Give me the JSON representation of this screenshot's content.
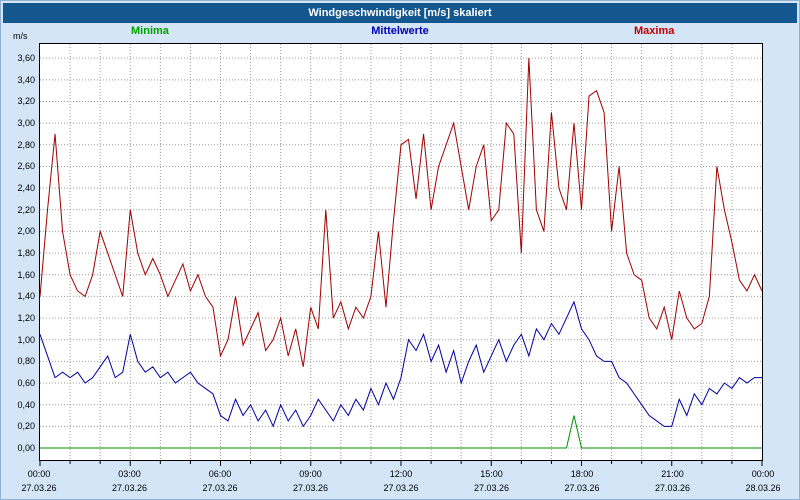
{
  "window": {
    "title": "Windgeschwindigkeit [m/s] skaliert"
  },
  "legend": [
    {
      "label": "Minima",
      "color": "#00a000"
    },
    {
      "label": "Mittelwerte",
      "color": "#0000b0"
    },
    {
      "label": "Maxima",
      "color": "#c00000"
    }
  ],
  "chart_data": {
    "type": "line",
    "title": "Windgeschwindigkeit [m/s] skaliert",
    "xlabel": "",
    "ylabel": "m/s",
    "ylim": [
      0,
      3.6
    ],
    "ytick_step": 0.2,
    "ytick_labels": [
      "0,00",
      "0,20",
      "0,40",
      "0,60",
      "0,80",
      "1,00",
      "1,20",
      "1,40",
      "1,60",
      "1,80",
      "2,00",
      "2,20",
      "2,40",
      "2,60",
      "2,80",
      "3,00",
      "3,20",
      "3,40",
      "3,60"
    ],
    "grid": "dotted",
    "legend_position": "top",
    "x_minutes_step": 15,
    "x_total_minutes": 1440,
    "x_hour_ticks": [
      "00:00",
      "03:00",
      "06:00",
      "09:00",
      "12:00",
      "15:00",
      "18:00",
      "21:00",
      "00:00"
    ],
    "x_date_ticks": [
      "27.03.26",
      "27.03.26",
      "27.03.26",
      "27.03.26",
      "27.03.26",
      "27.03.26",
      "27.03.26",
      "27.03.26",
      "28.03.26"
    ],
    "series": [
      {
        "name": "Minima",
        "color": "#009000",
        "values": [
          0,
          0,
          0,
          0,
          0,
          0,
          0,
          0,
          0,
          0,
          0,
          0,
          0,
          0,
          0,
          0,
          0,
          0,
          0,
          0,
          0,
          0,
          0,
          0,
          0,
          0,
          0,
          0,
          0,
          0,
          0,
          0,
          0,
          0,
          0,
          0,
          0,
          0,
          0,
          0,
          0,
          0,
          0,
          0,
          0,
          0,
          0,
          0,
          0,
          0,
          0,
          0,
          0,
          0,
          0,
          0,
          0,
          0,
          0,
          0,
          0,
          0,
          0,
          0,
          0,
          0,
          0,
          0,
          0,
          0,
          0,
          0.3,
          0,
          0,
          0,
          0,
          0,
          0,
          0,
          0,
          0,
          0,
          0,
          0,
          0,
          0,
          0,
          0,
          0,
          0,
          0,
          0,
          0,
          0,
          0,
          0,
          0
        ]
      },
      {
        "name": "Mittelwerte",
        "color": "#0000a0",
        "values": [
          1.05,
          0.85,
          0.65,
          0.7,
          0.65,
          0.7,
          0.6,
          0.65,
          0.75,
          0.85,
          0.65,
          0.7,
          1.05,
          0.8,
          0.7,
          0.75,
          0.65,
          0.7,
          0.6,
          0.65,
          0.7,
          0.6,
          0.55,
          0.5,
          0.3,
          0.25,
          0.45,
          0.3,
          0.4,
          0.25,
          0.35,
          0.2,
          0.4,
          0.25,
          0.35,
          0.2,
          0.3,
          0.45,
          0.35,
          0.25,
          0.4,
          0.3,
          0.45,
          0.35,
          0.55,
          0.4,
          0.6,
          0.45,
          0.65,
          1.0,
          0.9,
          1.05,
          0.8,
          0.95,
          0.7,
          0.9,
          0.6,
          0.8,
          0.95,
          0.7,
          0.85,
          1.0,
          0.8,
          0.95,
          1.05,
          0.85,
          1.1,
          1.0,
          1.15,
          1.05,
          1.2,
          1.35,
          1.1,
          1.0,
          0.85,
          0.8,
          0.8,
          0.65,
          0.6,
          0.5,
          0.4,
          0.3,
          0.25,
          0.2,
          0.2,
          0.45,
          0.3,
          0.5,
          0.4,
          0.55,
          0.5,
          0.6,
          0.55,
          0.65,
          0.6,
          0.65,
          0.65
        ]
      },
      {
        "name": "Maxima",
        "color": "#a00000",
        "values": [
          1.4,
          2.2,
          2.9,
          2.0,
          1.6,
          1.45,
          1.4,
          1.6,
          2.0,
          1.8,
          1.6,
          1.4,
          2.2,
          1.8,
          1.6,
          1.75,
          1.6,
          1.4,
          1.55,
          1.7,
          1.45,
          1.6,
          1.4,
          1.3,
          0.85,
          1.0,
          1.4,
          0.95,
          1.1,
          1.25,
          0.9,
          1.0,
          1.2,
          0.85,
          1.1,
          0.75,
          1.3,
          1.1,
          2.2,
          1.2,
          1.35,
          1.1,
          1.3,
          1.2,
          1.4,
          2.0,
          1.3,
          2.1,
          2.8,
          2.85,
          2.3,
          2.9,
          2.2,
          2.6,
          2.8,
          3.0,
          2.6,
          2.2,
          2.6,
          2.8,
          2.1,
          2.2,
          3.0,
          2.9,
          1.8,
          3.6,
          2.2,
          2.0,
          3.1,
          2.4,
          2.2,
          3.0,
          2.2,
          3.25,
          3.3,
          3.1,
          2.0,
          2.6,
          1.8,
          1.6,
          1.55,
          1.2,
          1.1,
          1.3,
          1.0,
          1.45,
          1.2,
          1.1,
          1.15,
          1.4,
          2.6,
          2.2,
          1.9,
          1.55,
          1.45,
          1.6,
          1.45
        ]
      }
    ]
  }
}
